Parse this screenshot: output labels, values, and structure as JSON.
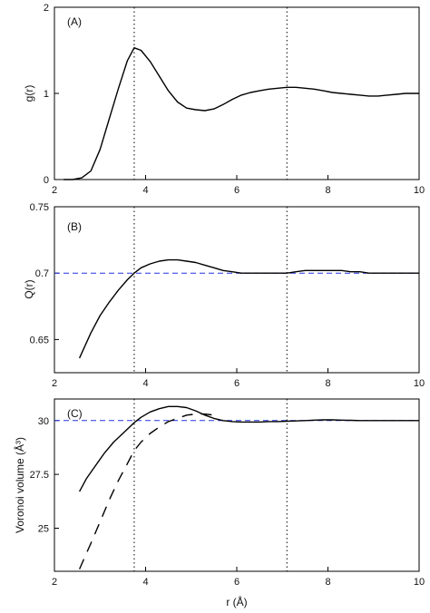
{
  "chart_data": [
    {
      "type": "line",
      "panel_label": "(A)",
      "xlabel": "",
      "ylabel": "g(r)",
      "xlim": [
        2,
        10
      ],
      "ylim": [
        0,
        2
      ],
      "xticks": [
        "2",
        "4",
        "6",
        "8",
        "10"
      ],
      "yticks": [
        {
          "value": 0,
          "label": "0"
        },
        {
          "value": 1,
          "label": "1"
        },
        {
          "value": 2,
          "label": "2"
        }
      ],
      "grid": false,
      "vlines": [
        3.75,
        7.1
      ],
      "hline": null,
      "series": [
        {
          "style": "solid",
          "x": [
            2.2,
            2.4,
            2.6,
            2.8,
            3.0,
            3.2,
            3.4,
            3.6,
            3.75,
            3.9,
            4.1,
            4.3,
            4.5,
            4.7,
            4.9,
            5.1,
            5.3,
            5.5,
            5.7,
            5.9,
            6.1,
            6.3,
            6.5,
            6.7,
            6.9,
            7.1,
            7.3,
            7.5,
            7.7,
            7.9,
            8.1,
            8.3,
            8.5,
            8.7,
            8.9,
            9.1,
            9.3,
            9.5,
            9.7,
            9.9,
            10.0
          ],
          "y": [
            0.0,
            0.0,
            0.02,
            0.1,
            0.35,
            0.7,
            1.05,
            1.38,
            1.53,
            1.5,
            1.37,
            1.2,
            1.03,
            0.9,
            0.83,
            0.81,
            0.8,
            0.82,
            0.87,
            0.93,
            0.98,
            1.01,
            1.03,
            1.05,
            1.06,
            1.07,
            1.07,
            1.06,
            1.05,
            1.03,
            1.01,
            1.0,
            0.99,
            0.98,
            0.97,
            0.97,
            0.98,
            0.99,
            1.0,
            1.0,
            1.0
          ]
        }
      ]
    },
    {
      "type": "line",
      "panel_label": "(B)",
      "xlabel": "",
      "ylabel": "Q(r)",
      "xlim": [
        2,
        10
      ],
      "ylim": [
        0.625,
        0.75
      ],
      "xticks": [
        "2",
        "4",
        "6",
        "8",
        "10"
      ],
      "yticks": [
        {
          "value": 0.65,
          "label": "0.65"
        },
        {
          "value": 0.7,
          "label": "0.7"
        },
        {
          "value": 0.75,
          "label": "0.75"
        }
      ],
      "grid": false,
      "vlines": [
        3.75,
        7.1
      ],
      "hline": 0.7,
      "series": [
        {
          "style": "solid",
          "x": [
            2.55,
            2.8,
            3.0,
            3.2,
            3.4,
            3.6,
            3.75,
            3.9,
            4.1,
            4.3,
            4.5,
            4.7,
            4.9,
            5.1,
            5.3,
            5.5,
            5.7,
            5.9,
            6.1,
            6.3,
            6.5,
            6.7,
            6.9,
            7.1,
            7.3,
            7.5,
            7.7,
            7.9,
            8.1,
            8.3,
            8.5,
            8.7,
            8.9,
            9.1,
            9.3,
            9.5,
            9.7,
            10.0
          ],
          "y": [
            0.636,
            0.655,
            0.668,
            0.678,
            0.687,
            0.695,
            0.7,
            0.704,
            0.707,
            0.709,
            0.71,
            0.71,
            0.709,
            0.708,
            0.706,
            0.704,
            0.702,
            0.701,
            0.7,
            0.7,
            0.7,
            0.7,
            0.7,
            0.7,
            0.701,
            0.702,
            0.702,
            0.702,
            0.702,
            0.702,
            0.701,
            0.701,
            0.7,
            0.7,
            0.7,
            0.7,
            0.7,
            0.7
          ]
        }
      ]
    },
    {
      "type": "line",
      "panel_label": "(C)",
      "xlabel": "r (Å)",
      "ylabel": "Voronoi volume (Å³)",
      "xlim": [
        2,
        10
      ],
      "ylim": [
        23,
        31
      ],
      "xticks": [
        "2",
        "4",
        "6",
        "8",
        "10"
      ],
      "yticks": [
        {
          "value": 25,
          "label": "25"
        },
        {
          "value": 27.5,
          "label": "27.5"
        },
        {
          "value": 30,
          "label": "30"
        }
      ],
      "grid": false,
      "vlines": [
        3.75,
        7.1
      ],
      "hline": 30,
      "series": [
        {
          "style": "solid",
          "x": [
            2.55,
            2.7,
            2.9,
            3.1,
            3.3,
            3.5,
            3.75,
            3.9,
            4.1,
            4.3,
            4.5,
            4.7,
            4.9,
            5.1,
            5.3,
            5.5,
            5.7,
            5.9,
            6.1,
            6.3,
            6.5,
            6.7,
            6.9,
            7.1,
            7.3,
            7.5,
            7.7,
            7.9,
            8.1,
            8.3,
            8.5,
            8.7,
            8.9,
            9.1,
            9.3,
            9.5,
            9.7,
            10.0
          ],
          "y": [
            26.7,
            27.3,
            27.9,
            28.5,
            29.0,
            29.4,
            29.9,
            30.15,
            30.4,
            30.55,
            30.65,
            30.65,
            30.6,
            30.45,
            30.25,
            30.1,
            30.0,
            29.95,
            29.93,
            29.93,
            29.93,
            29.95,
            29.95,
            29.97,
            29.98,
            30.0,
            30.02,
            30.03,
            30.03,
            30.02,
            30.01,
            30.0,
            30.0,
            30.0,
            30.0,
            30.0,
            30.0,
            30.0
          ]
        },
        {
          "style": "dashed",
          "x": [
            2.55,
            2.8,
            3.0,
            3.2,
            3.4,
            3.6,
            3.75,
            3.9,
            4.1,
            4.3,
            4.5,
            4.7,
            4.9,
            5.1,
            5.3,
            5.5
          ],
          "y": [
            23.1,
            24.3,
            25.3,
            26.3,
            27.2,
            28.0,
            28.6,
            29.0,
            29.4,
            29.7,
            29.95,
            30.1,
            30.25,
            30.3,
            30.3,
            30.25
          ]
        }
      ]
    }
  ]
}
